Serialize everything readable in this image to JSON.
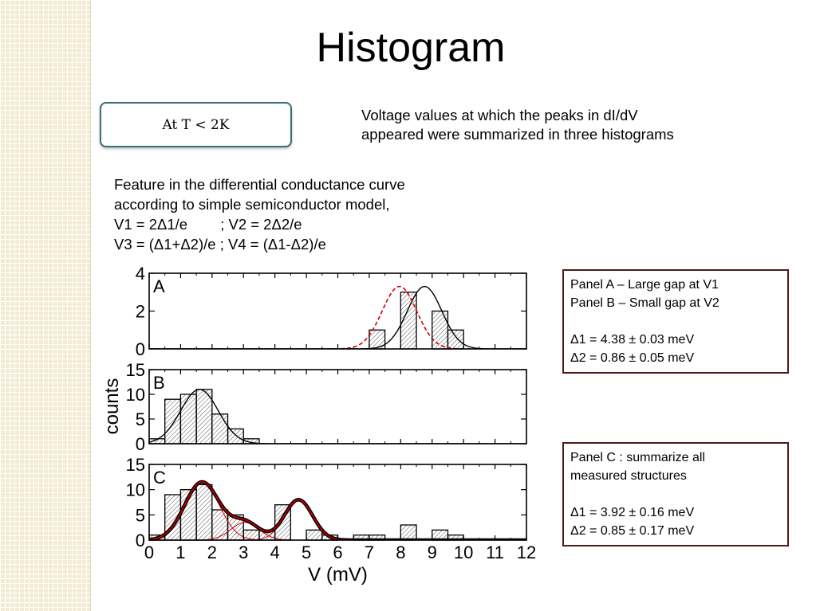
{
  "slide": {
    "title": "Histogram",
    "badge": "At T < 2K",
    "intro_lines": [
      "Voltage values at which the peaks in dI/dV",
      "appeared were summarized in three histograms"
    ],
    "feature_lines": [
      "Feature in the differential conductance curve",
      "according to simple semiconductor model,",
      "V1 = 2Δ1/e        ; V2 = 2Δ2/e",
      "V3 = (Δ1+Δ2)/e ; V4 = (Δ1-Δ2)/e"
    ],
    "infobox_ab": {
      "line1": "Panel A – Large gap at V1",
      "line2": "Panel B – Small gap at V2",
      "line3": "Δ1 = 4.38 ± 0.03 meV",
      "line4": "Δ2 = 0.86 ± 0.05 meV"
    },
    "infobox_c": {
      "line1": "Panel C : summarize all",
      "line2": "measured structures",
      "line3": "Δ1 = 3.92 ± 0.16 meV",
      "line4": "Δ2 = 0.85 ± 0.17 meV"
    }
  },
  "colors": {
    "strip": "#f3ecd3",
    "badge_border": "#3b6e71",
    "infobox_border": "#4d1a1a",
    "fit_red": "#cc0000",
    "bar_hatch": "#555555"
  },
  "chart_data": {
    "type": "bar",
    "xlabel": "V (mV)",
    "ylabel": "counts",
    "xlim": [
      0,
      12
    ],
    "xticks": [
      0,
      1,
      2,
      3,
      4,
      5,
      6,
      7,
      8,
      9,
      10,
      11,
      12
    ],
    "bin_width": 0.5,
    "panels": [
      {
        "label": "A",
        "ylim": [
          0,
          4
        ],
        "yticks": [
          0,
          2,
          4
        ],
        "bins": [
          [
            7.25,
            1
          ],
          [
            8.25,
            3
          ],
          [
            9.25,
            2
          ],
          [
            9.75,
            1
          ]
        ],
        "curves": [
          {
            "style": "solid",
            "color": "#000000",
            "components": [
              {
                "mu": 8.76,
                "sigma": 0.55,
                "amp": 3.3
              }
            ]
          },
          {
            "style": "dashed",
            "color": "#cc0000",
            "components": [
              {
                "mu": 7.96,
                "sigma": 0.55,
                "amp": 3.3
              }
            ]
          }
        ]
      },
      {
        "label": "B",
        "ylim": [
          0,
          15
        ],
        "yticks": [
          0,
          5,
          10,
          15
        ],
        "bins": [
          [
            0.25,
            1
          ],
          [
            0.75,
            9
          ],
          [
            1.25,
            10
          ],
          [
            1.75,
            11
          ],
          [
            2.25,
            6
          ],
          [
            2.75,
            3
          ],
          [
            3.25,
            1
          ]
        ],
        "curves": [
          {
            "style": "solid",
            "color": "#000000",
            "components": [
              {
                "mu": 1.6,
                "sigma": 0.6,
                "amp": 11
              }
            ]
          }
        ]
      },
      {
        "label": "C",
        "ylim": [
          0,
          15
        ],
        "yticks": [
          0,
          5,
          10,
          15
        ],
        "bins": [
          [
            0.25,
            1
          ],
          [
            0.75,
            9
          ],
          [
            1.25,
            10
          ],
          [
            1.75,
            11
          ],
          [
            2.25,
            6
          ],
          [
            2.75,
            5
          ],
          [
            3.25,
            2
          ],
          [
            3.75,
            2
          ],
          [
            4.25,
            7
          ],
          [
            5.25,
            2
          ],
          [
            5.75,
            1
          ],
          [
            6.75,
            1
          ],
          [
            7.25,
            1
          ],
          [
            8.25,
            3
          ],
          [
            9.25,
            2
          ],
          [
            9.75,
            1
          ]
        ],
        "curves": [
          {
            "style": "thin",
            "color": "#cc0000",
            "components": [
              {
                "mu": 1.68,
                "sigma": 0.55,
                "amp": 11.5
              }
            ]
          },
          {
            "style": "thin",
            "color": "#cc0000",
            "components": [
              {
                "mu": 3.05,
                "sigma": 0.45,
                "amp": 3.5
              }
            ]
          },
          {
            "style": "thin",
            "color": "#cc0000",
            "components": [
              {
                "mu": 4.75,
                "sigma": 0.45,
                "amp": 8.0
              }
            ]
          },
          {
            "style": "thick",
            "color": "#000000",
            "components": [
              {
                "mu": 1.68,
                "sigma": 0.55,
                "amp": 11.5
              },
              {
                "mu": 3.05,
                "sigma": 0.45,
                "amp": 3.5
              },
              {
                "mu": 4.75,
                "sigma": 0.45,
                "amp": 8.0
              }
            ]
          },
          {
            "style": "overlay",
            "color": "#cc0000",
            "components": [
              {
                "mu": 1.68,
                "sigma": 0.55,
                "amp": 11.5
              },
              {
                "mu": 3.05,
                "sigma": 0.45,
                "amp": 3.5
              },
              {
                "mu": 4.75,
                "sigma": 0.45,
                "amp": 8.0
              }
            ]
          }
        ]
      }
    ]
  }
}
